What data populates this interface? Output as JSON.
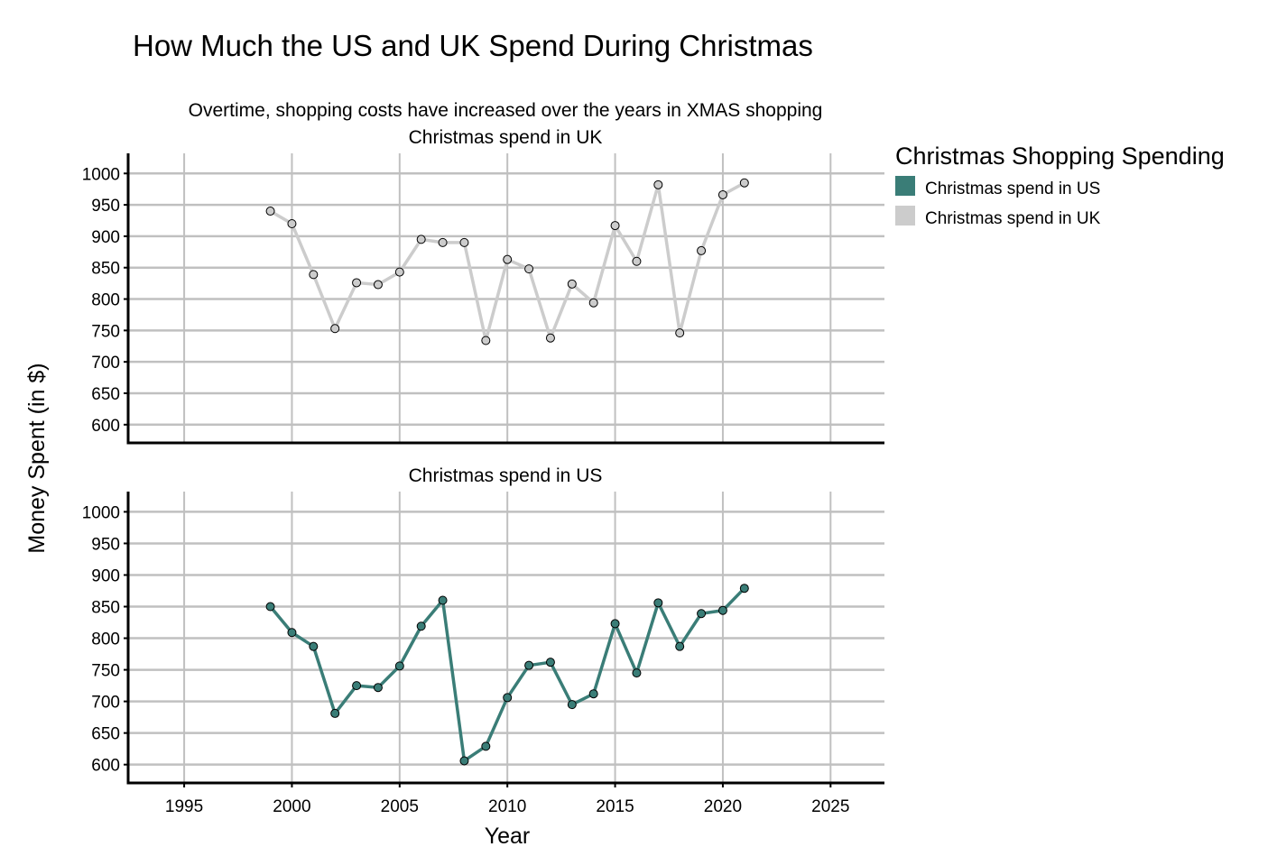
{
  "chart_data": {
    "type": "line",
    "title": "How Much the US and UK Spend During Christmas",
    "subtitle": "Overtime, shopping costs have increased over the years in XMAS shopping",
    "xlabel": "Year",
    "ylabel": "Money Spent (in $)",
    "xlim": [
      1992.4,
      2027.5
    ],
    "ylim": [
      571,
      1032
    ],
    "x_ticks": [
      1995,
      2000,
      2005,
      2010,
      2015,
      2020,
      2025
    ],
    "y_ticks": [
      600,
      650,
      700,
      750,
      800,
      850,
      900,
      950,
      1000
    ],
    "grid": true,
    "legend": {
      "title": "Christmas Shopping Spending",
      "position": "right",
      "items": [
        {
          "label": "Christmas spend in US",
          "color": "#3a7d77"
        },
        {
          "label": "Christmas spend in UK",
          "color": "#cccccc"
        }
      ]
    },
    "x": [
      1999,
      2000,
      2001,
      2002,
      2003,
      2004,
      2005,
      2006,
      2007,
      2008,
      2009,
      2010,
      2011,
      2012,
      2013,
      2014,
      2015,
      2016,
      2017,
      2018,
      2019,
      2020,
      2021
    ],
    "series": [
      {
        "name": "Christmas spend in UK",
        "panel_title": "Christmas spend in UK",
        "color": "#cccccc",
        "values": [
          940,
          920,
          839,
          753,
          826,
          823,
          843,
          895,
          890,
          890,
          734,
          863,
          848,
          738,
          824,
          794,
          917,
          860,
          982,
          746,
          877,
          966,
          985
        ]
      },
      {
        "name": "Christmas spend in US",
        "panel_title": "Christmas spend in US",
        "color": "#3a7d77",
        "values": [
          850,
          809,
          787,
          681,
          725,
          722,
          756,
          819,
          860,
          606,
          629,
          706,
          757,
          762,
          695,
          712,
          823,
          745,
          856,
          787,
          839,
          844,
          879
        ]
      }
    ]
  }
}
